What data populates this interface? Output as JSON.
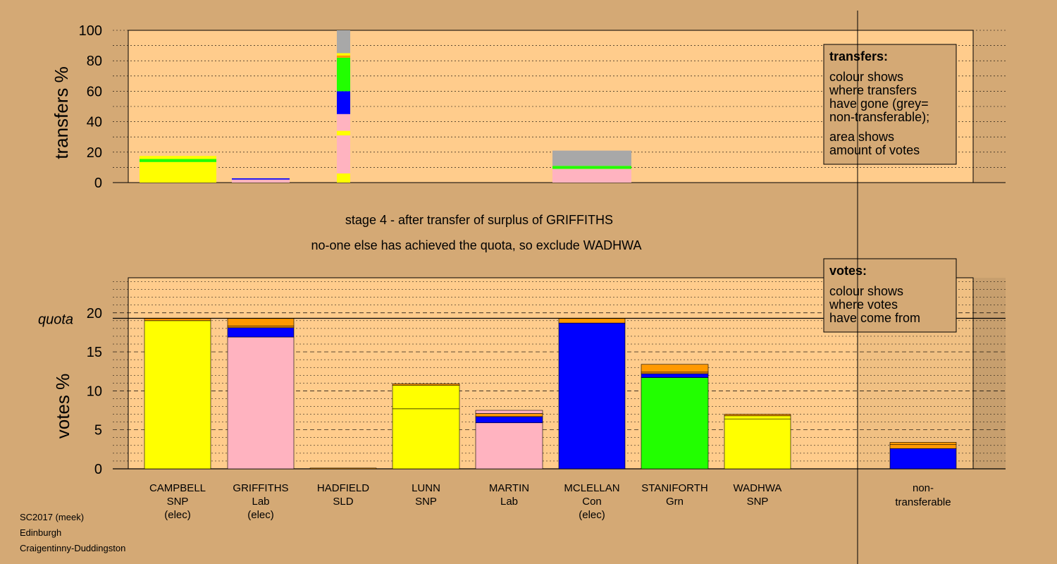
{
  "colors": {
    "background": "#D4A975",
    "plot_background": "#FFCC8C",
    "SNP": "#FFFF00",
    "Lab": "#FFB3C0",
    "Con": "#0000FF",
    "Grn": "#22FF00",
    "other": "#FF9900",
    "non_transferable": "#A8A8A8"
  },
  "footer": [
    "SC2017 (meek)",
    "Edinburgh",
    "Craigentinny-Duddingston"
  ],
  "stage_text": {
    "line1": "stage 4 - after transfer of surplus of GRIFFITHS",
    "line2": "no-one else has achieved the quota, so exclude WADHWA"
  },
  "legend_transfers": {
    "title": "transfers:",
    "lines": [
      "colour shows",
      "where transfers",
      "have gone (grey=",
      "non-transferable);",
      "area shows",
      "amount of votes"
    ]
  },
  "legend_votes": {
    "title": "votes:",
    "lines": [
      "colour shows",
      "where votes",
      "have come from"
    ]
  },
  "candidates": [
    {
      "name": "CAMPBELL",
      "party": "SNP",
      "status": "(elec)"
    },
    {
      "name": "GRIFFITHS",
      "party": "Lab",
      "status": "(elec)"
    },
    {
      "name": "HADFIELD",
      "party": "SLD",
      "status": ""
    },
    {
      "name": "LUNN",
      "party": "SNP",
      "status": ""
    },
    {
      "name": "MARTIN",
      "party": "Lab",
      "status": ""
    },
    {
      "name": "MCLELLAN",
      "party": "Con",
      "status": "(elec)"
    },
    {
      "name": "STANIFORTH",
      "party": "Grn",
      "status": ""
    },
    {
      "name": "WADHWA",
      "party": "SNP",
      "status": ""
    }
  ],
  "non_transferable_label": [
    "non-",
    "transferable"
  ],
  "chart_data": [
    {
      "type": "bar",
      "ylabel": "transfers %",
      "ylim": [
        0,
        100
      ],
      "yticks": [
        0,
        20,
        40,
        60,
        80,
        100
      ],
      "bars": [
        {
          "segments": [
            {
              "color": "SNP",
              "value": 13.5
            },
            {
              "color": "Grn",
              "value": 2
            },
            {
              "color": "SNP",
              "value": 2
            }
          ]
        },
        {
          "segments": [
            {
              "color": "Lab",
              "value": 2
            },
            {
              "color": "Con",
              "value": 0.8
            }
          ]
        },
        {
          "segments": [
            {
              "color": "SNP",
              "value": 6
            },
            {
              "color": "Lab",
              "value": 25
            },
            {
              "color": "SNP",
              "value": 3
            },
            {
              "color": "Lab",
              "value": 11
            },
            {
              "color": "Con",
              "value": 15
            },
            {
              "color": "Grn",
              "value": 22
            },
            {
              "color": "other",
              "value": 1.5
            },
            {
              "color": "SNP",
              "value": 1.5
            },
            {
              "color": "non_transferable",
              "value": 15
            }
          ]
        },
        {
          "segments": [
            {
              "color": "Lab",
              "value": 9
            },
            {
              "color": "Grn",
              "value": 2
            },
            {
              "color": "non_transferable",
              "value": 10
            }
          ]
        }
      ],
      "grid": true
    },
    {
      "type": "bar",
      "ylabel": "votes %",
      "ylim": [
        0,
        24.5
      ],
      "yticks": [
        0,
        5,
        10,
        15,
        20
      ],
      "quota": 19.3,
      "quota_label": "quota",
      "bars": [
        {
          "segments": [
            {
              "color": "SNP",
              "value": 19.0
            },
            {
              "color": "other",
              "value": 0.3
            }
          ]
        },
        {
          "segments": [
            {
              "color": "Lab",
              "value": 16.9
            },
            {
              "color": "Con",
              "value": 1.2
            },
            {
              "color": "other",
              "value": 0.2
            },
            {
              "color": "other",
              "value": 1.0
            }
          ]
        },
        {
          "segments": [
            {
              "color": "other",
              "value": 0.1
            }
          ]
        },
        {
          "segments": [
            {
              "color": "SNP",
              "value": 7.7
            },
            {
              "color": "SNP",
              "value": 3.0
            },
            {
              "color": "other",
              "value": 0.2
            }
          ]
        },
        {
          "segments": [
            {
              "color": "Lab",
              "value": 5.9
            },
            {
              "color": "Con",
              "value": 0.8
            },
            {
              "color": "other",
              "value": 0.4
            },
            {
              "color": "Lab",
              "value": 0.4
            }
          ]
        },
        {
          "segments": [
            {
              "color": "Con",
              "value": 18.7
            },
            {
              "color": "other",
              "value": 0.6
            }
          ]
        },
        {
          "segments": [
            {
              "color": "Grn",
              "value": 11.7
            },
            {
              "color": "Con",
              "value": 0.5
            },
            {
              "color": "other",
              "value": 0.2
            },
            {
              "color": "other",
              "value": 1.0
            }
          ]
        },
        {
          "segments": [
            {
              "color": "SNP",
              "value": 6.4
            },
            {
              "color": "SNP",
              "value": 0.4
            },
            {
              "color": "other",
              "value": 0.2
            }
          ]
        },
        {
          "segments": [
            {
              "color": "Con",
              "value": 2.6
            },
            {
              "color": "other",
              "value": 0.5
            },
            {
              "color": "other",
              "value": 0.3
            }
          ]
        }
      ],
      "grid": true
    }
  ]
}
